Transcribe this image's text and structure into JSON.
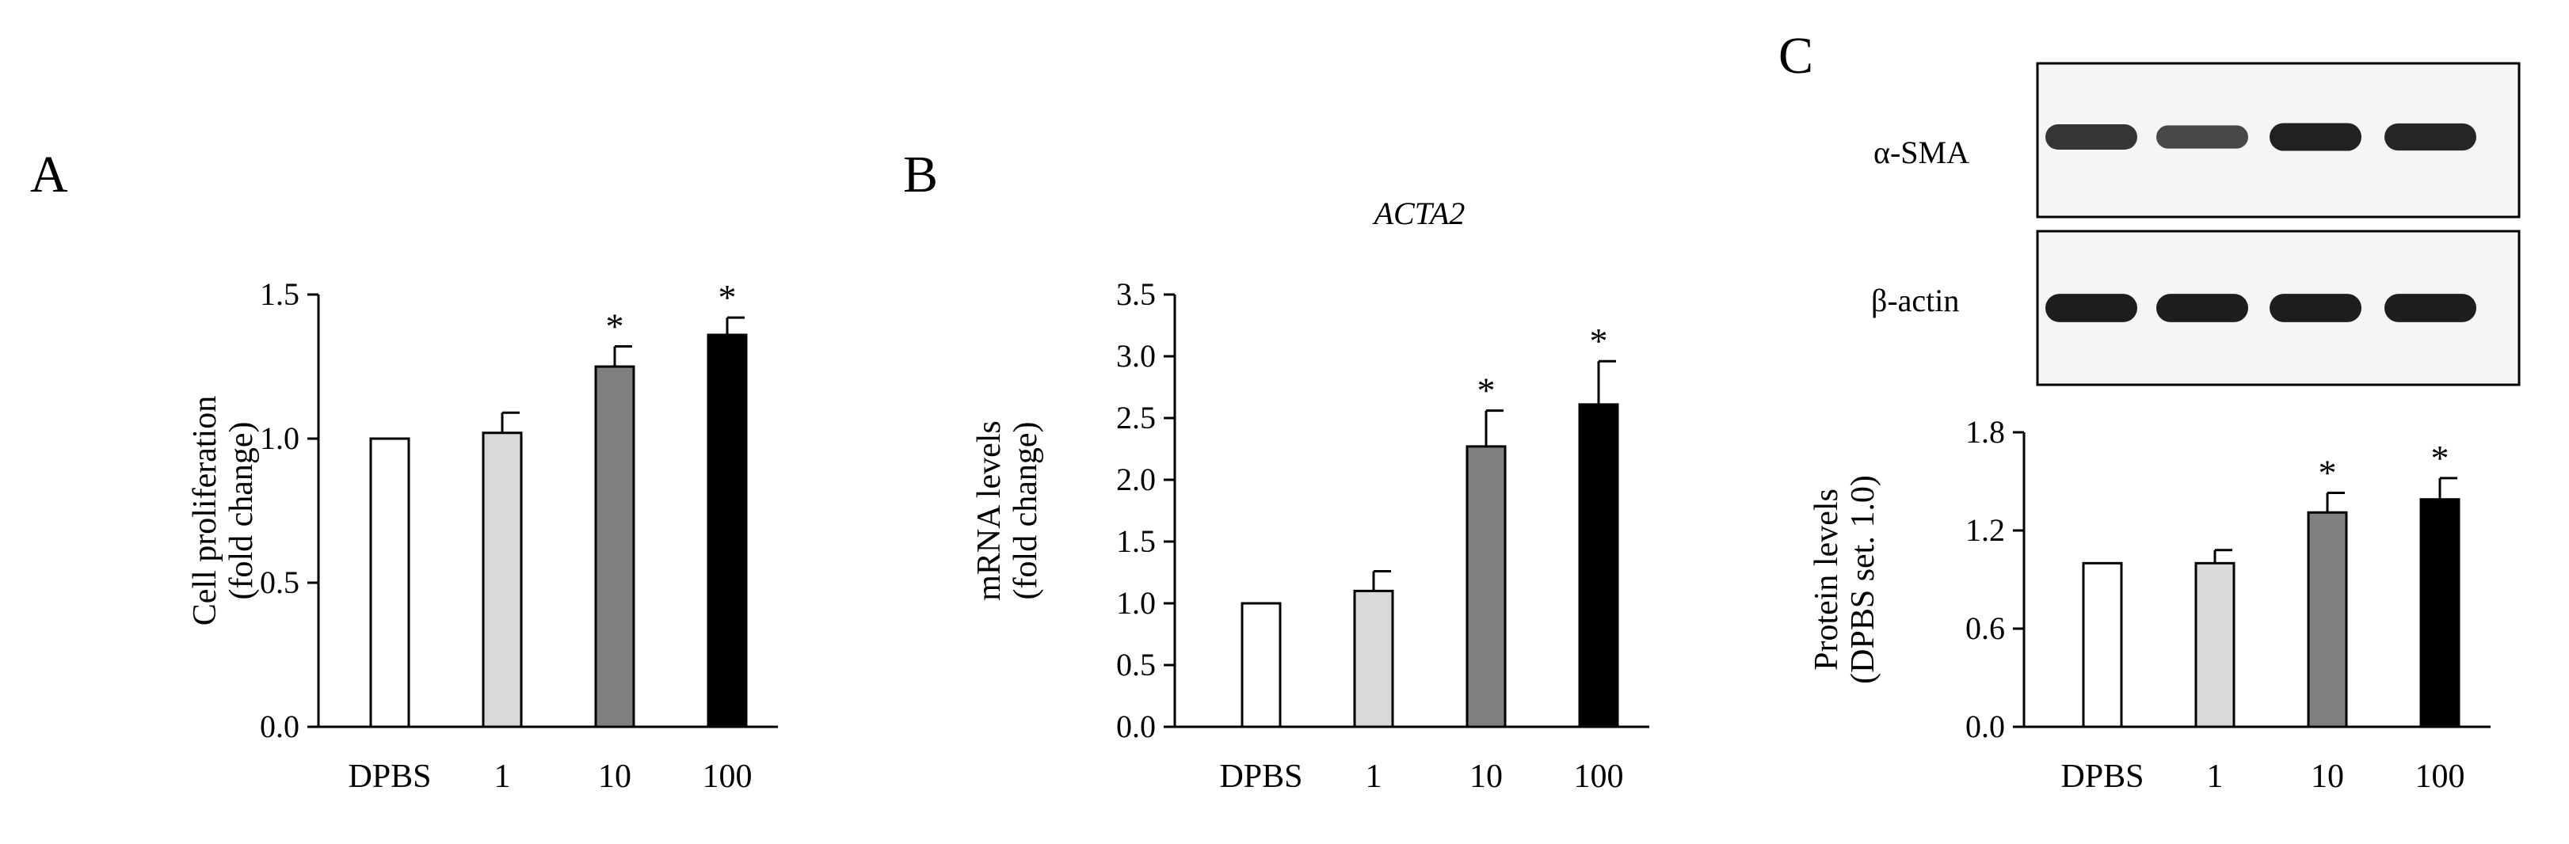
{
  "colors": {
    "bar_fills": [
      "#ffffff",
      "#d9d9d9",
      "#808080",
      "#000000"
    ],
    "stroke": "#000000",
    "blot_background": "#f5f5f5",
    "blot_band": "#1a1a1a"
  },
  "western_blot": {
    "rows": [
      {
        "label": "α-SMA",
        "intensities": [
          0.78,
          0.62,
          0.95,
          0.9
        ]
      },
      {
        "label": "β-actin",
        "intensities": [
          0.98,
          0.98,
          0.98,
          0.98
        ]
      }
    ]
  },
  "chart_data": [
    {
      "type": "bar",
      "panel": "A",
      "title": "",
      "ylabel_lines": [
        "Cell proliferation",
        "(fold change)"
      ],
      "categories": [
        "DPBS",
        "1",
        "10",
        "100"
      ],
      "values": [
        1.0,
        1.02,
        1.25,
        1.36
      ],
      "errors": [
        0,
        0.07,
        0.07,
        0.06
      ],
      "significance": [
        "",
        "",
        "*",
        "*"
      ],
      "ylim": [
        0,
        1.5
      ],
      "yticks": [
        "0.0",
        "0.5",
        "1.0",
        "1.5"
      ],
      "grid": false
    },
    {
      "type": "bar",
      "panel": "B",
      "title": "ACTA2",
      "ylabel_lines": [
        "mRNA levels",
        "(fold change)"
      ],
      "categories": [
        "DPBS",
        "1",
        "10",
        "100"
      ],
      "values": [
        1.0,
        1.1,
        2.27,
        2.61
      ],
      "errors": [
        0,
        0.16,
        0.29,
        0.35
      ],
      "significance": [
        "",
        "",
        "*",
        "*"
      ],
      "ylim": [
        0,
        3.5
      ],
      "yticks": [
        "0.0",
        "0.5",
        "1.0",
        "1.5",
        "2.0",
        "2.5",
        "3.0",
        "3.5"
      ],
      "grid": false
    },
    {
      "type": "bar",
      "panel": "C",
      "title": "",
      "ylabel_lines": [
        "Protein levels",
        "(DPBS set. 1.0)"
      ],
      "categories": [
        "DPBS",
        "1",
        "10",
        "100"
      ],
      "values": [
        1.0,
        1.0,
        1.31,
        1.39
      ],
      "errors": [
        0,
        0.08,
        0.12,
        0.13
      ],
      "significance": [
        "",
        "",
        "*",
        "*"
      ],
      "ylim": [
        0,
        1.8
      ],
      "yticks": [
        "0.0",
        "0.6",
        "1.2",
        "1.8"
      ],
      "grid": false
    }
  ]
}
